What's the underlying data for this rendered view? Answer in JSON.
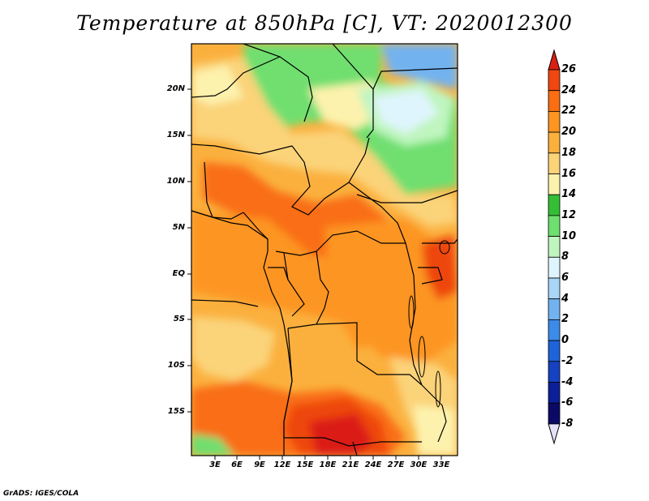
{
  "title": "Temperature at 850hPa [C], VT: 2020012300",
  "credit": "GrADS: IGES/COLA",
  "lat_labels": [
    "20N",
    "15N",
    "10N",
    "5N",
    "EQ",
    "5S",
    "10S",
    "15S"
  ],
  "lon_labels": [
    "3E",
    "6E",
    "9E",
    "12E",
    "15E",
    "18E",
    "21E",
    "24E",
    "27E",
    "30E",
    "33E"
  ],
  "colorbar": {
    "labels": [
      "26",
      "24",
      "22",
      "20",
      "18",
      "16",
      "14",
      "12",
      "10",
      "8",
      "6",
      "4",
      "2",
      "0",
      "-2",
      "-4",
      "-6",
      "-8"
    ],
    "colors": [
      "#db1f14",
      "#ee4710",
      "#f96e13",
      "#fd9520",
      "#fbb03e",
      "#fbd379",
      "#fdf2ad",
      "#35be35",
      "#6fdf6f",
      "#c0f5c0",
      "#dff5fd",
      "#a9d5f7",
      "#72b3ef",
      "#3d8be8",
      "#1f63d8",
      "#1642c1",
      "#0b1f96",
      "#0a0a66",
      "#e5e1f8"
    ]
  },
  "map": {
    "background": "#fbb03e",
    "legend_meaning": "850hPa temperature, degrees C"
  }
}
